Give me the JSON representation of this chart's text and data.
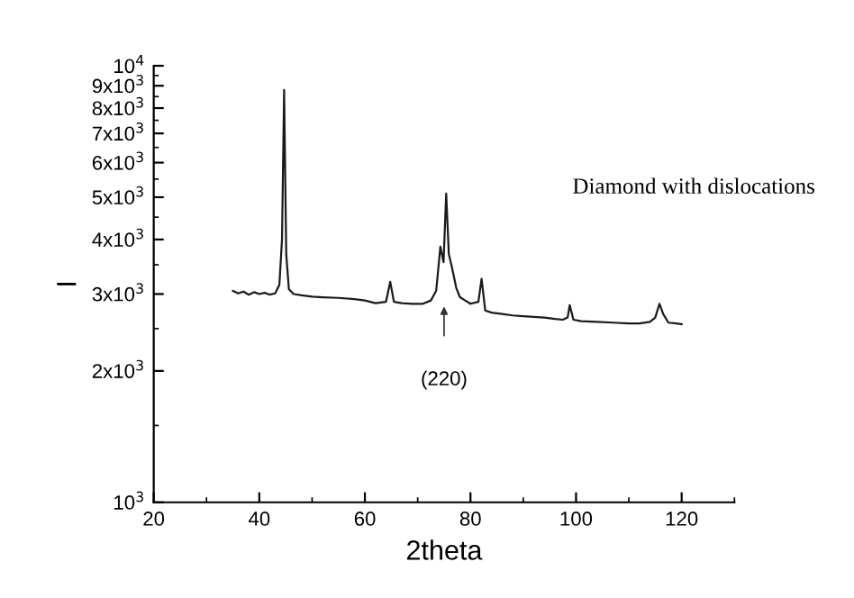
{
  "chart_data": {
    "type": "line",
    "xlabel": "2theta",
    "ylabel": "I",
    "annotations": [
      "Diamond with dislocations",
      "(220)"
    ],
    "log": "y",
    "xlim": [
      20,
      130
    ],
    "xticks": [
      20,
      40,
      60,
      80,
      100,
      120
    ],
    "ylim": [
      1000,
      10000
    ],
    "yticks": [
      {
        "value": 1000,
        "label": "10$^{3}$"
      },
      {
        "value": 2000,
        "label": "2x10$^{3}$"
      },
      {
        "value": 3000,
        "label": "3x10$^{3}$"
      },
      {
        "value": 4000,
        "label": "4x10$^{3}$"
      },
      {
        "value": 5000,
        "label": "5x10$^{3}$"
      },
      {
        "value": 6000,
        "label": "6x10$^{3}$"
      },
      {
        "value": 7000,
        "label": "7x10$^{3}$"
      },
      {
        "value": 8000,
        "label": "8x10$^{3}$"
      },
      {
        "value": 9000,
        "label": "9x10$^{3}$"
      },
      {
        "value": 10000,
        "label": "10$^{4}$"
      }
    ],
    "grid": false,
    "marker": "none",
    "line_style": "solid",
    "series": [
      {
        "color": "#1a1a1a",
        "x": [
          35,
          36,
          37,
          38,
          39,
          40,
          41,
          42,
          43,
          43.8,
          44.3,
          44.7,
          45.1,
          45.6,
          46.5,
          48,
          50,
          52,
          55,
          58,
          60,
          62,
          64,
          64.8,
          65.5,
          67,
          69,
          71,
          72.5,
          73.5,
          74.3,
          74.9,
          75.4,
          75.9,
          76.5,
          77.3,
          78,
          79,
          80,
          81.5,
          82.1,
          82.8,
          84,
          86,
          88,
          90,
          92,
          94,
          96,
          97.5,
          98.4,
          98.8,
          99.5,
          101,
          104,
          107,
          110,
          112,
          114,
          115,
          115.8,
          116.5,
          117.5,
          119,
          120
        ],
        "values": [
          3050,
          3010,
          3040,
          2990,
          3030,
          3000,
          3020,
          2990,
          3010,
          3150,
          4000,
          8800,
          3700,
          3080,
          3000,
          2980,
          2960,
          2950,
          2940,
          2920,
          2900,
          2860,
          2880,
          3200,
          2880,
          2860,
          2850,
          2850,
          2900,
          3050,
          3850,
          3550,
          5100,
          3700,
          3450,
          3100,
          2950,
          2900,
          2850,
          2880,
          3250,
          2750,
          2720,
          2700,
          2680,
          2670,
          2660,
          2650,
          2630,
          2620,
          2650,
          2830,
          2620,
          2600,
          2590,
          2580,
          2570,
          2570,
          2590,
          2650,
          2850,
          2700,
          2580,
          2570,
          2560
        ]
      }
    ]
  }
}
